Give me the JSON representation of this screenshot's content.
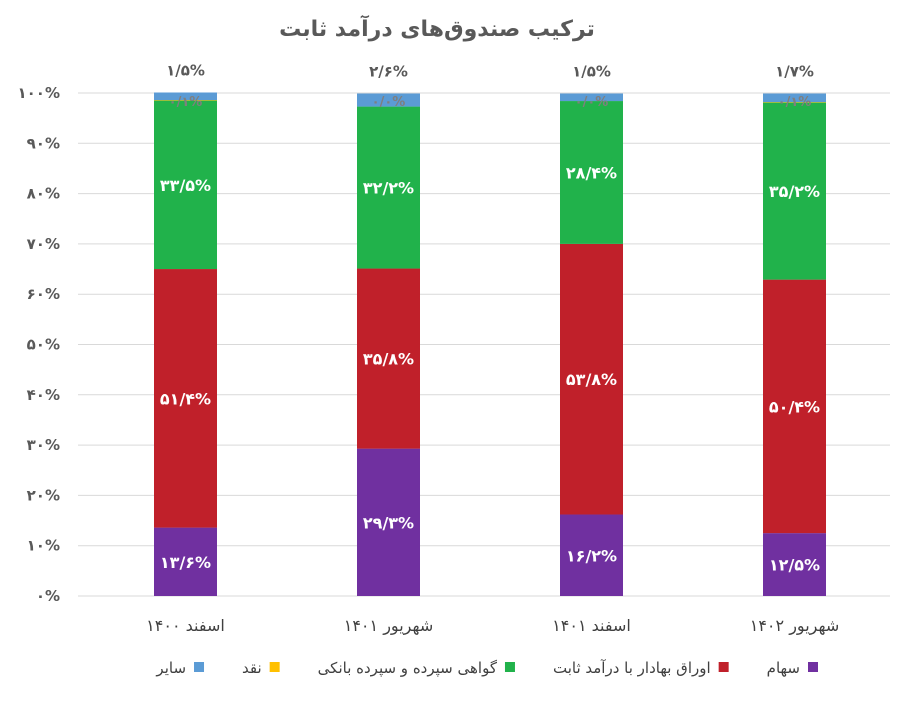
{
  "chart_data": {
    "type": "bar",
    "stacked": true,
    "title": "ترکیب صندوق‌های درآمد ثابت",
    "categories": [
      "اسفند ۱۴۰۰",
      "شهریور ۱۴۰۱",
      "اسفند ۱۴۰۱",
      "شهریور ۱۴۰۲"
    ],
    "ylim": [
      0,
      100
    ],
    "ytick_labels": [
      "۰%",
      "۱۰%",
      "۲۰%",
      "۳۰%",
      "۴۰%",
      "۵۰%",
      "۶۰%",
      "۷۰%",
      "۸۰%",
      "۹۰%",
      "۱۰۰%"
    ],
    "grid": true,
    "legend_position": "bottom",
    "series": [
      {
        "name": "سهام",
        "color": "#7030a0",
        "values": [
          13.6,
          29.3,
          16.2,
          12.5
        ],
        "labels": [
          "۱۳/۶%",
          "۲۹/۳%",
          "۱۶/۲%",
          "۱۲/۵%"
        ]
      },
      {
        "name": "اوراق بهادار با درآمد ثابت",
        "color": "#c0202a",
        "values": [
          51.4,
          35.8,
          53.8,
          50.4
        ],
        "labels": [
          "۵۱/۴%",
          "۳۵/۸%",
          "۵۳/۸%",
          "۵۰/۴%"
        ]
      },
      {
        "name": "گواهی سپرده و سپرده بانکی",
        "color": "#21b24b",
        "values": [
          33.5,
          32.2,
          28.4,
          35.2
        ],
        "labels": [
          "۳۳/۵%",
          "۳۲/۲%",
          "۲۸/۴%",
          "۳۵/۲%"
        ]
      },
      {
        "name": "نقد",
        "color": "#ffc000",
        "values": [
          0.1,
          0.0,
          0.0,
          0.1
        ],
        "labels": [
          "۰/۱%",
          "۰/۰%",
          "۰/۰%",
          "۰/۱%"
        ]
      },
      {
        "name": "سایر",
        "color": "#5b9bd5",
        "values": [
          1.5,
          2.6,
          1.5,
          1.7
        ],
        "labels": [
          "۱/۵%",
          "۲/۶%",
          "۱/۵%",
          "۱/۷%"
        ]
      }
    ]
  }
}
